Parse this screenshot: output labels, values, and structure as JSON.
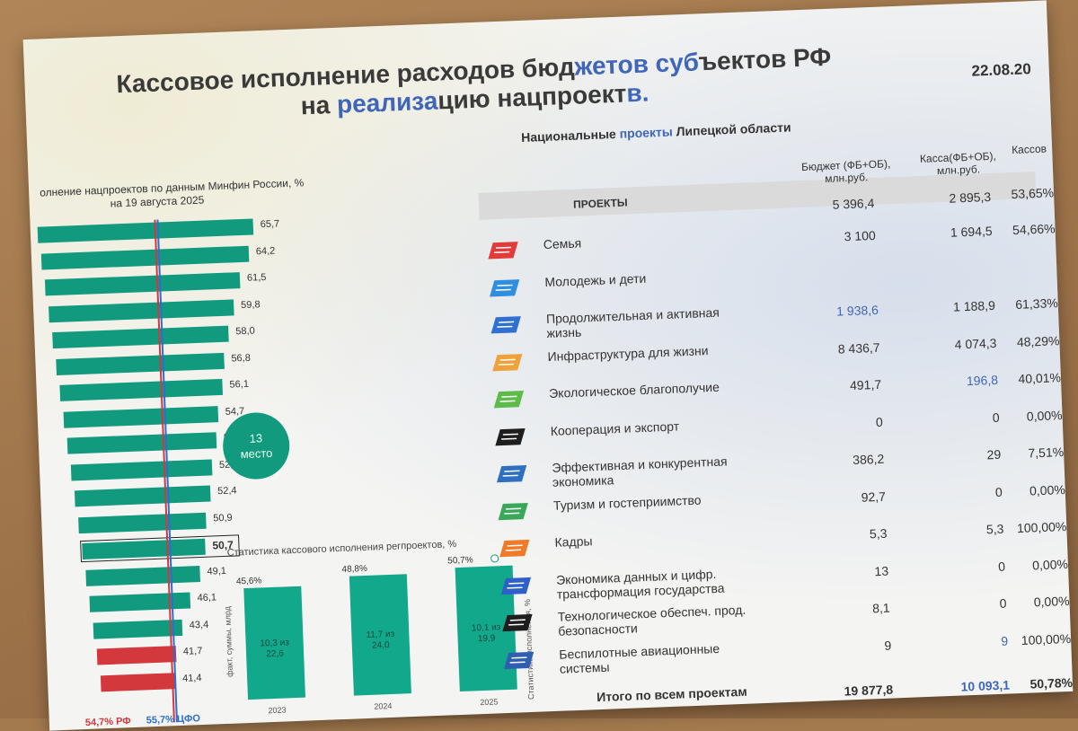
{
  "title": {
    "part1": "Кассовое исполнение расходов бюд",
    "hl1": "жетов суб",
    "part2": "ъектов РФ",
    "line2a": "на ",
    "hl2": "реализа",
    "line2b": "цию нацпроект",
    "hl3": "в."
  },
  "date": "22.08.20",
  "subtitle": {
    "a": "Национальные ",
    "hl": "проекты",
    "b": " Липецкой области"
  },
  "left_chart": {
    "caption_line1": "олнение нацпроектов по данным Минфин России, %",
    "caption_line2": "на 19 августа 2025",
    "max_value": 65.7,
    "bars": [
      {
        "value": "65,7",
        "num": 65.7,
        "color": "teal"
      },
      {
        "value": "64,2",
        "num": 64.2,
        "color": "teal"
      },
      {
        "value": "61,5",
        "num": 61.5,
        "color": "teal"
      },
      {
        "value": "59,8",
        "num": 59.8,
        "color": "teal"
      },
      {
        "value": "58,0",
        "num": 58.0,
        "color": "teal"
      },
      {
        "value": "56,8",
        "num": 56.8,
        "color": "teal"
      },
      {
        "value": "56,1",
        "num": 56.1,
        "color": "teal"
      },
      {
        "value": "54,7",
        "num": 54.7,
        "color": "teal"
      },
      {
        "value": "54,2",
        "num": 54.2,
        "color": "teal"
      },
      {
        "value": "52,9",
        "num": 52.9,
        "color": "teal"
      },
      {
        "value": "52,4",
        "num": 52.4,
        "color": "teal"
      },
      {
        "value": "50,9",
        "num": 50.9,
        "color": "teal"
      },
      {
        "value": "50,7",
        "num": 50.7,
        "color": "teal",
        "highlight": true
      },
      {
        "value": "49,1",
        "num": 49.1,
        "color": "teal"
      },
      {
        "value": "46,1",
        "num": 46.1,
        "color": "teal"
      },
      {
        "value": "43,4",
        "num": 43.4,
        "color": "teal"
      },
      {
        "value": "41,7",
        "num": 41.7,
        "color": "red"
      },
      {
        "value": "41,4",
        "num": 41.4,
        "color": "red"
      }
    ],
    "reference_lines": [
      {
        "value": 54.7,
        "color": "#d2383c"
      },
      {
        "value": 55.7,
        "color": "#2b6fd0"
      }
    ],
    "legend_rf": "54,7% РФ",
    "legend_cfo": "55,7% ЦФО",
    "place_number": "13",
    "place_label": "место"
  },
  "stat_chart": {
    "title": "Статистика кассового исполнения регпроектов, %",
    "y_axis_label": "Статистика исполнения, %",
    "y_axis_label_left": "факт, суммы, млрд",
    "bars": [
      {
        "year": "2023",
        "pct": "45,6%",
        "value": 45.6,
        "inner1": "10,3 из",
        "inner2": "22,6"
      },
      {
        "year": "2024",
        "pct": "48,8%",
        "value": 48.8,
        "inner1": "11,7 из",
        "inner2": "24,0"
      },
      {
        "year": "2025",
        "pct": "50,7%",
        "value": 50.7,
        "inner1": "10,1 из",
        "inner2": "19,9"
      }
    ]
  },
  "table": {
    "col_projects": "ПРОЕКТЫ",
    "col_budget": "Бюджет (ФБ+ОБ), млн.руб.",
    "col_kassa": "Касса(ФБ+ОБ), млн.руб.",
    "col_pct": "Кассов",
    "header_budget": "5 396,4",
    "header_kassa": "2 895,3",
    "header_pct": "53,65%",
    "rows": [
      {
        "name": "Семья",
        "budget": "3 100",
        "kassa": "1 694,5",
        "pct": "54,66%",
        "icon_color": "#e23b3b"
      },
      {
        "name": "Молодежь и дети",
        "budget": "",
        "kassa": "",
        "pct": "",
        "icon_color": "#2f8ee0"
      },
      {
        "name": "Продолжительная и активная жизнь",
        "budget": "1 938,6",
        "kassa": "1 188,9",
        "pct": "61,33%",
        "icon_color": "#2f70d0",
        "budget_blue": true
      },
      {
        "name": "Инфраструктура для жизни",
        "budget": "8 436,7",
        "kassa": "4 074,3",
        "pct": "48,29%",
        "icon_color": "#f0a23a"
      },
      {
        "name": "Экологическое благополучие",
        "budget": "491,7",
        "kassa": "196,8",
        "pct": "40,01%",
        "icon_color": "#5dbb4a",
        "kassa_blue": true
      },
      {
        "name": "Кооперация и экспорт",
        "budget": "0",
        "kassa": "0",
        "pct": "0,00%",
        "icon_color": "#1e1e1e"
      },
      {
        "name": "Эффективная и конкурентная экономика",
        "budget": "386,2",
        "kassa": "29",
        "pct": "7,51%",
        "icon_color": "#2f6fc0"
      },
      {
        "name": "Туризм и гостеприимство",
        "budget": "92,7",
        "kassa": "0",
        "pct": "0,00%",
        "icon_color": "#3aa85a"
      },
      {
        "name": "Кадры",
        "budget": "5,3",
        "kassa": "5,3",
        "pct": "100,00%",
        "icon_color": "#f07a28"
      },
      {
        "name": "Экономика данных и цифр. трансформация государства",
        "budget": "13",
        "kassa": "0",
        "pct": "0,00%",
        "icon_color": "#2f5fc8"
      },
      {
        "name": "Технологическое обеспеч. прод. безопасности",
        "budget": "8,1",
        "kassa": "0",
        "pct": "0,00%",
        "icon_color": "#1e1e1e"
      },
      {
        "name": "Беспилотные авиационные системы",
        "budget": "9",
        "kassa": "9",
        "pct": "100,00%",
        "icon_color": "#2f5fb0",
        "kassa_blue": true
      }
    ],
    "total": {
      "name": "Итого по всем проектам",
      "budget": "19 877,8",
      "kassa": "10 093,1",
      "pct": "50,78%"
    }
  }
}
